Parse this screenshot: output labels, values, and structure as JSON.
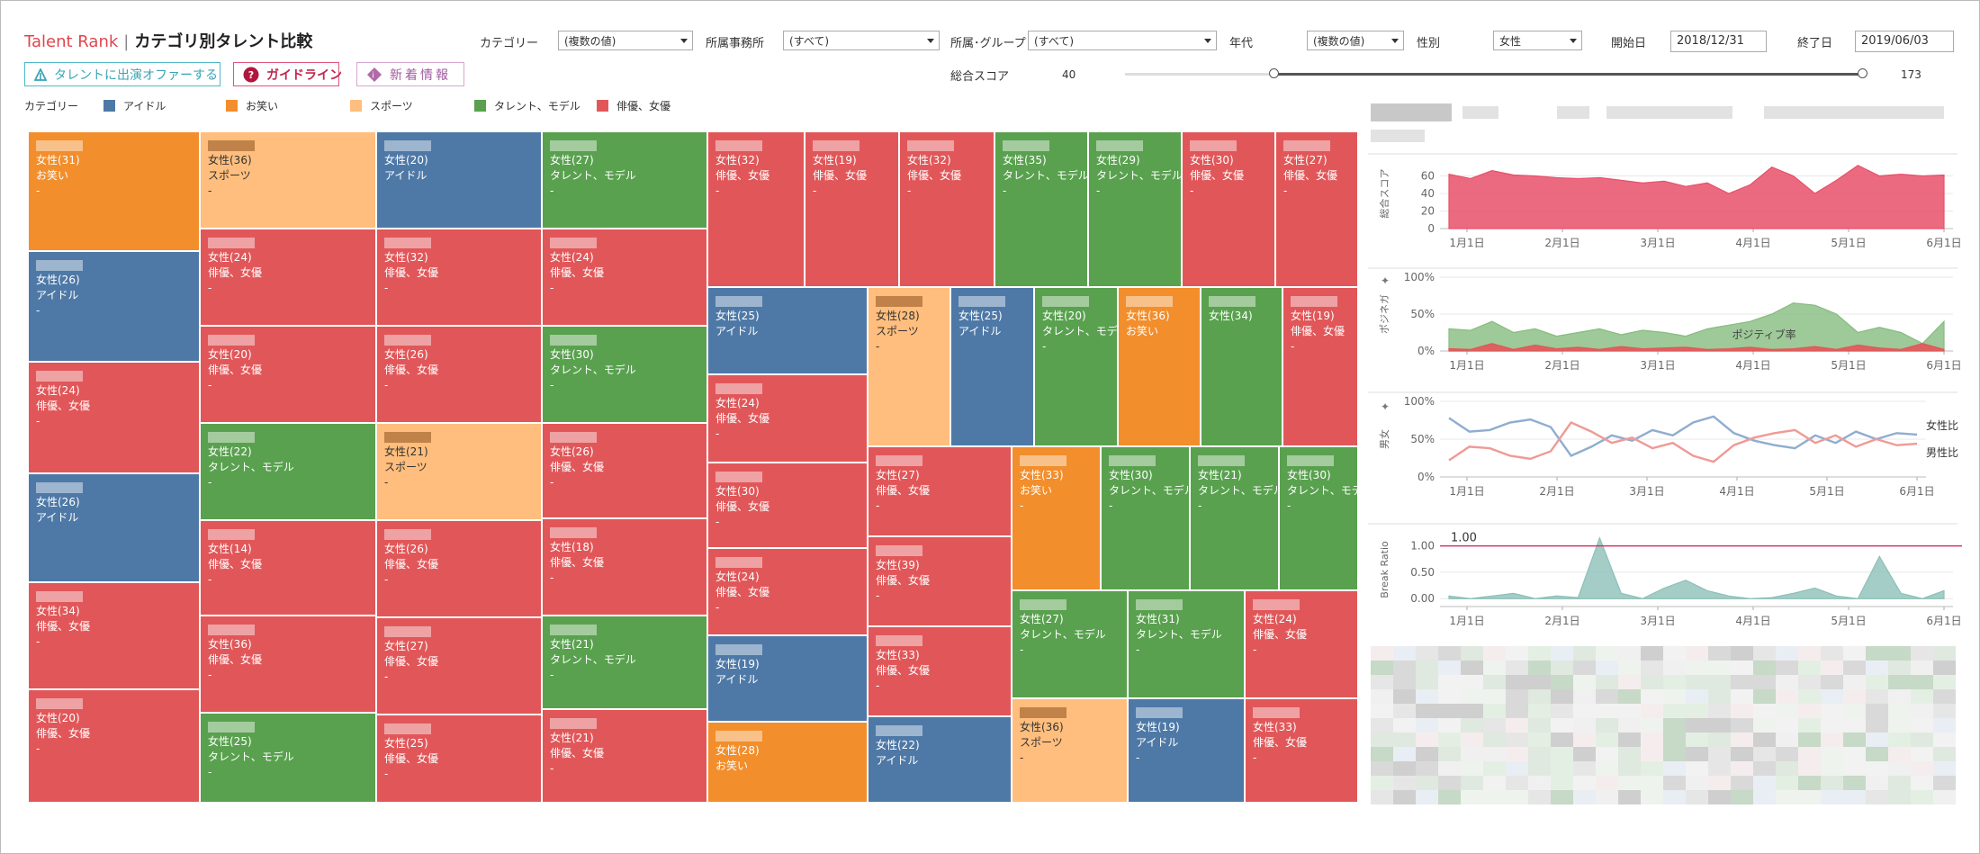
{
  "header": {
    "brand": "Talent Rank",
    "separator": "|",
    "subtitle": "カテゴリ別タレント比較",
    "buttons": {
      "offer": "タレントに出演オファーする",
      "guide": "ガイドライン",
      "news": "新着情報"
    }
  },
  "filters": {
    "category": {
      "label": "カテゴリー",
      "value": "(複数の値)"
    },
    "agency": {
      "label": "所属事務所",
      "value": "(すべて)"
    },
    "group": {
      "label": "所属･グループ",
      "value": "(すべて)"
    },
    "age": {
      "label": "年代",
      "value": "(複数の値)"
    },
    "gender": {
      "label": "性別",
      "value": "女性"
    },
    "start": {
      "label": "開始日",
      "value": "2018/12/31"
    },
    "end": {
      "label": "終了日",
      "value": "2019/06/03"
    },
    "score": {
      "label": "総合スコア",
      "min_label": "40",
      "max_label": "173",
      "range_min": 40,
      "range_max": 173,
      "sel_low": 40,
      "sel_high": 173
    }
  },
  "legend": {
    "title": "カテゴリー",
    "items": [
      {
        "label": "アイドル",
        "color": "#4e79a7"
      },
      {
        "label": "お笑い",
        "color": "#f28e2b"
      },
      {
        "label": "スポーツ",
        "color": "#ffbe7d"
      },
      {
        "label": "タレント、モデル",
        "color": "#59a14f"
      },
      {
        "label": "俳優、女優",
        "color": "#e15759"
      }
    ]
  },
  "treemap": {
    "cells": [
      {
        "cat": "お笑い",
        "info": "女性(31)",
        "sub": "お笑い",
        "dash": "-"
      },
      {
        "cat": "アイドル",
        "info": "女性(26)",
        "sub": "アイドル",
        "dash": "-"
      },
      {
        "cat": "俳優、女優",
        "info": "女性(24)",
        "sub": "俳優、女優",
        "dash": "-"
      },
      {
        "cat": "アイドル",
        "info": "女性(26)",
        "sub": "アイドル",
        "dash": ""
      },
      {
        "cat": "俳優、女優",
        "info": "女性(34)",
        "sub": "俳優、女優",
        "dash": "-"
      },
      {
        "cat": "俳優、女優",
        "info": "女性(20)",
        "sub": "俳優、女優",
        "dash": "-"
      },
      {
        "cat": "スポーツ",
        "info": "女性(36)",
        "sub": "スポーツ",
        "dash": "-"
      },
      {
        "cat": "俳優、女優",
        "info": "女性(24)",
        "sub": "俳優、女優",
        "dash": "-"
      },
      {
        "cat": "俳優、女優",
        "info": "女性(20)",
        "sub": "俳優、女優",
        "dash": "-"
      },
      {
        "cat": "タレント、モデル",
        "info": "女性(22)",
        "sub": "タレント、モデル",
        "dash": "-"
      },
      {
        "cat": "俳優、女優",
        "info": "女性(14)",
        "sub": "俳優、女優",
        "dash": "-"
      },
      {
        "cat": "俳優、女優",
        "info": "女性(36)",
        "sub": "俳優、女優",
        "dash": "-"
      },
      {
        "cat": "タレント、モデル",
        "info": "女性(25)",
        "sub": "タレント、モデル",
        "dash": "-"
      },
      {
        "cat": "アイドル",
        "info": "女性(20)",
        "sub": "アイドル",
        "dash": ""
      },
      {
        "cat": "俳優、女優",
        "info": "女性(32)",
        "sub": "俳優、女優",
        "dash": "-"
      },
      {
        "cat": "俳優、女優",
        "info": "女性(26)",
        "sub": "俳優、女優",
        "dash": "-"
      },
      {
        "cat": "スポーツ",
        "info": "女性(21)",
        "sub": "スポーツ",
        "dash": "-"
      },
      {
        "cat": "俳優、女優",
        "info": "女性(26)",
        "sub": "俳優、女優",
        "dash": "-"
      },
      {
        "cat": "俳優、女優",
        "info": "女性(27)",
        "sub": "俳優、女優",
        "dash": "-"
      },
      {
        "cat": "俳優、女優",
        "info": "女性(25)",
        "sub": "俳優、女優",
        "dash": "-"
      },
      {
        "cat": "タレント、モデル",
        "info": "女性(27)",
        "sub": "タレント、モデル",
        "dash": "-"
      },
      {
        "cat": "俳優、女優",
        "info": "女性(24)",
        "sub": "俳優、女優",
        "dash": "-"
      },
      {
        "cat": "タレント、モデル",
        "info": "女性(30)",
        "sub": "タレント、モデル",
        "dash": "-"
      },
      {
        "cat": "俳優、女優",
        "info": "女性(26)",
        "sub": "俳優、女優",
        "dash": "-"
      },
      {
        "cat": "俳優、女優",
        "info": "女性(18)",
        "sub": "俳優、女優",
        "dash": "-"
      },
      {
        "cat": "タレント、モデル",
        "info": "女性(21)",
        "sub": "タレント、モデル",
        "dash": "-"
      },
      {
        "cat": "俳優、女優",
        "info": "女性(21)",
        "sub": "俳優、女優",
        "dash": "-"
      },
      {
        "cat": "俳優、女優",
        "info": "女性(32)",
        "sub": "俳優、女優",
        "dash": "-"
      },
      {
        "cat": "俳優、女優",
        "info": "女性(19)",
        "sub": "俳優、女優",
        "dash": "-"
      },
      {
        "cat": "俳優、女優",
        "info": "女性(32)",
        "sub": "俳優、女優",
        "dash": "-"
      },
      {
        "cat": "タレント、モデル",
        "info": "女性(35)",
        "sub": "タレント、モデル",
        "dash": "-"
      },
      {
        "cat": "タレント、モデル",
        "info": "女性(29)",
        "sub": "タレント、モデル",
        "dash": "-"
      },
      {
        "cat": "俳優、女優",
        "info": "女性(30)",
        "sub": "俳優、女優",
        "dash": "-"
      },
      {
        "cat": "俳優、女優",
        "info": "女性(27)",
        "sub": "俳優、女優",
        "dash": "-"
      },
      {
        "cat": "アイドル",
        "info": "女性(25)",
        "sub": "アイドル",
        "dash": ""
      },
      {
        "cat": "俳優、女優",
        "info": "女性(24)",
        "sub": "俳優、女優",
        "dash": "-"
      },
      {
        "cat": "俳優、女優",
        "info": "女性(30)",
        "sub": "俳優、女優",
        "dash": "-"
      },
      {
        "cat": "俳優、女優",
        "info": "女性(24)",
        "sub": "俳優、女優",
        "dash": "-"
      },
      {
        "cat": "アイドル",
        "info": "女性(19)",
        "sub": "アイドル",
        "dash": ""
      },
      {
        "cat": "お笑い",
        "info": "女性(28)",
        "sub": "お笑い",
        "dash": ""
      },
      {
        "cat": "スポーツ",
        "info": "女性(28)",
        "sub": "スポーツ",
        "dash": "-"
      },
      {
        "cat": "アイドル",
        "info": "女性(25)",
        "sub": "アイドル",
        "dash": ""
      },
      {
        "cat": "タレント、モデル",
        "info": "女性(20)",
        "sub": "タレント、モデル",
        "dash": "-"
      },
      {
        "cat": "お笑い",
        "info": "女性(36)",
        "sub": "お笑い",
        "dash": ""
      },
      {
        "cat": "タレント、モデル",
        "info": "女性(34)",
        "sub": "",
        "dash": ""
      },
      {
        "cat": "俳優、女優",
        "info": "女性(19)",
        "sub": "俳優、女優",
        "dash": "-"
      },
      {
        "cat": "俳優、女優",
        "info": "女性(27)",
        "sub": "俳優、女優",
        "dash": "-"
      },
      {
        "cat": "俳優、女優",
        "info": "女性(39)",
        "sub": "俳優、女優",
        "dash": "-"
      },
      {
        "cat": "俳優、女優",
        "info": "女性(33)",
        "sub": "俳優、女優",
        "dash": "-"
      },
      {
        "cat": "アイドル",
        "info": "女性(22)",
        "sub": "アイドル",
        "dash": ""
      },
      {
        "cat": "お笑い",
        "info": "女性(33)",
        "sub": "お笑い",
        "dash": "-"
      },
      {
        "cat": "タレント、モデル",
        "info": "女性(30)",
        "sub": "タレント、モデル",
        "dash": "-"
      },
      {
        "cat": "タレント、モデル",
        "info": "女性(21)",
        "sub": "タレント、モデル",
        "dash": "-"
      },
      {
        "cat": "タレント、モデル",
        "info": "女性(30)",
        "sub": "タレント、モデル",
        "dash": "-"
      },
      {
        "cat": "タレント、モデル",
        "info": "女性(27)",
        "sub": "タレント、モデル",
        "dash": "-"
      },
      {
        "cat": "タレント、モデル",
        "info": "女性(31)",
        "sub": "タレント、モデル",
        "dash": "-"
      },
      {
        "cat": "俳優、女優",
        "info": "女性(24)",
        "sub": "俳優、女優",
        "dash": "-"
      },
      {
        "cat": "スポーツ",
        "info": "女性(36)",
        "sub": "スポーツ",
        "dash": "-"
      },
      {
        "cat": "アイドル",
        "info": "女性(19)",
        "sub": "アイドル",
        "dash": "-"
      },
      {
        "cat": "俳優、女優",
        "info": "女性(33)",
        "sub": "俳優、女優",
        "dash": "-"
      }
    ]
  },
  "chart_data": [
    {
      "type": "area",
      "ylabel": "総合スコア",
      "ylim": [
        0,
        80
      ],
      "yticks": [
        0,
        20,
        40,
        60
      ],
      "xticks": [
        "1月1日",
        "2月1日",
        "3月1日",
        "4月1日",
        "5月1日",
        "6月1日"
      ],
      "color": "#e8506a",
      "values": [
        62,
        57,
        66,
        61,
        60,
        58,
        57,
        58,
        55,
        52,
        54,
        48,
        52,
        40,
        50,
        70,
        60,
        40,
        55,
        72,
        60,
        62,
        60,
        61
      ]
    },
    {
      "type": "area",
      "ylabel": "ポジネガ",
      "ylim": [
        0,
        100
      ],
      "yticks": [
        "0%",
        "50%",
        "100%"
      ],
      "xticks": [
        "1月1日",
        "2月1日",
        "3月1日",
        "4月1日",
        "5月1日",
        "6月1日"
      ],
      "annotation": "ポジティブ率",
      "series": [
        {
          "values": [
            30,
            28,
            40,
            25,
            30,
            20,
            25,
            30,
            22,
            28,
            25,
            20,
            30,
            35,
            40,
            50,
            65,
            62,
            50,
            25,
            32,
            25,
            10,
            40
          ],
          "color": "#86bc7f"
        },
        {
          "values": [
            3,
            2,
            10,
            2,
            8,
            3,
            5,
            2,
            6,
            3,
            4,
            5,
            2,
            3,
            5,
            2,
            3,
            6,
            2,
            8,
            4,
            2,
            10,
            2
          ],
          "color": "#e15759"
        }
      ]
    },
    {
      "type": "line",
      "ylabel": "男女",
      "ylim": [
        0,
        100
      ],
      "yticks": [
        "0%",
        "50%",
        "100%"
      ],
      "xticks": [
        "1月1日",
        "2月1日",
        "3月1日",
        "4月1日",
        "5月1日",
        "6月1日"
      ],
      "series": [
        {
          "name": "女性比",
          "color": "#8fadd0",
          "values": [
            78,
            60,
            62,
            72,
            76,
            66,
            28,
            40,
            55,
            48,
            62,
            55,
            72,
            80,
            58,
            48,
            42,
            38,
            55,
            45,
            60,
            50,
            58,
            56
          ]
        },
        {
          "name": "男性比",
          "color": "#ef9a96",
          "values": [
            22,
            40,
            38,
            28,
            24,
            34,
            72,
            60,
            45,
            52,
            38,
            45,
            28,
            20,
            42,
            52,
            58,
            62,
            45,
            55,
            40,
            50,
            42,
            44
          ]
        }
      ]
    },
    {
      "type": "area",
      "ylabel": "Break Ratio",
      "ylim": [
        -0.15,
        1.25
      ],
      "yticks": [
        "0.00",
        "0.50",
        "1.00"
      ],
      "reference_label": "1.00",
      "xticks": [
        "1月1日",
        "2月1日",
        "3月1日",
        "4月1日",
        "5月1日",
        "6月1日"
      ],
      "color": "#8cc0b8",
      "values": [
        0.05,
        0,
        0.05,
        0.1,
        0,
        0.05,
        0.02,
        1.15,
        0.1,
        0,
        0.2,
        0.35,
        0.15,
        0.05,
        0,
        0.02,
        0.1,
        0.2,
        0.05,
        0,
        0.8,
        0.1,
        0,
        0.15
      ]
    }
  ]
}
